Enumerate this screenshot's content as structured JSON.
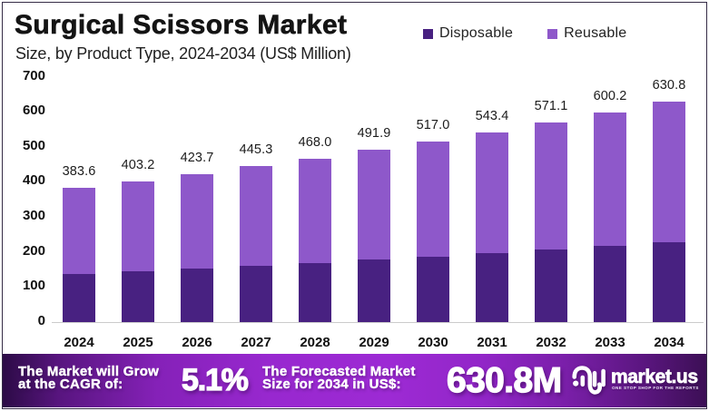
{
  "title": "Surgical Scissors Market",
  "subtitle": "Size, by Product Type, 2024-2034 (US$ Million)",
  "legend": [
    {
      "label": "Disposable",
      "color": "#482181"
    },
    {
      "label": "Reusable",
      "color": "#8e58ca"
    }
  ],
  "chart_data": {
    "type": "bar",
    "stacked": true,
    "title": "Surgical Scissors Market",
    "subtitle": "Size, by Product Type, 2024-2034 (US$ Million)",
    "unit": "US$ Million",
    "categories": [
      "2024",
      "2025",
      "2026",
      "2027",
      "2028",
      "2029",
      "2030",
      "2031",
      "2032",
      "2033",
      "2034"
    ],
    "series": [
      {
        "name": "Disposable",
        "color": "#482181",
        "values": [
          139.5,
          146.6,
          154.1,
          161.9,
          170.2,
          178.9,
          188.0,
          197.6,
          207.7,
          218.3,
          229.4
        ]
      },
      {
        "name": "Reusable",
        "color": "#8e58ca",
        "values": [
          244.1,
          256.6,
          269.6,
          283.4,
          297.8,
          313.0,
          329.0,
          345.8,
          363.4,
          381.9,
          401.4
        ]
      }
    ],
    "totals": [
      383.6,
      403.2,
      423.7,
      445.3,
      468.0,
      491.9,
      517.0,
      543.4,
      571.1,
      600.2,
      630.8
    ],
    "total_labels": [
      "383.6",
      "403.2",
      "423.7",
      "445.3",
      "468.0",
      "491.9",
      "517.0",
      "543.4",
      "571.1",
      "600.2",
      "630.8"
    ],
    "xlabel": "",
    "ylabel": "",
    "ylim": [
      0,
      700
    ],
    "yticks": [
      0,
      100,
      200,
      300,
      400,
      500,
      600,
      700
    ],
    "grid": false,
    "legend_position": "top-right"
  },
  "footer": {
    "cagr_label_line1": "The Market will Grow",
    "cagr_label_line2": "at the CAGR of:",
    "cagr_value": "5.1%",
    "forecast_label_line1": "The Forecasted Market",
    "forecast_label_line2": "Size for 2034 in US$:",
    "forecast_value": "630.8M",
    "brand": {
      "name": "market.us",
      "tagline": "ONE STOP SHOP FOR THE REPORTS"
    }
  }
}
